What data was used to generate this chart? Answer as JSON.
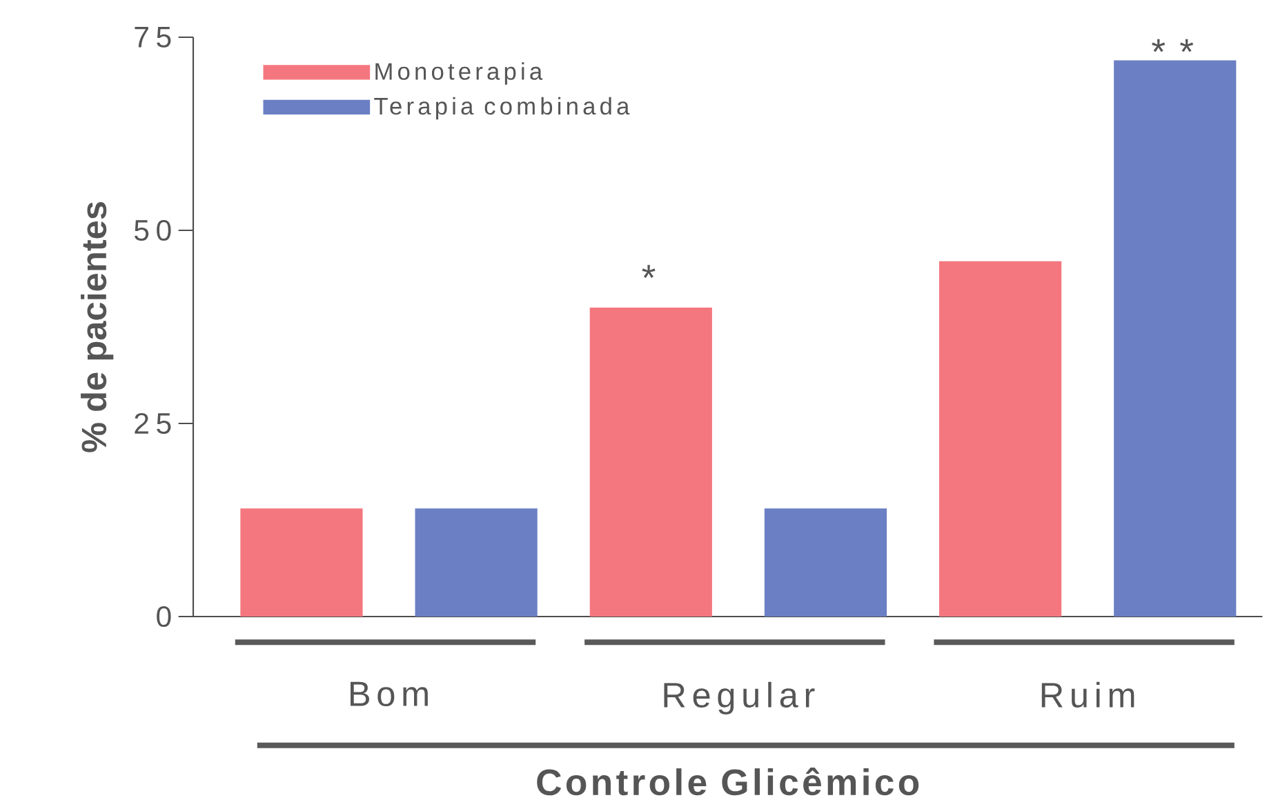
{
  "chart_data": {
    "type": "bar",
    "xlabel": "Controle Glicêmico",
    "ylabel": "% de pacientes",
    "categories": [
      "Bom",
      "Regular",
      "Ruim"
    ],
    "series": [
      {
        "name": "Monoterapia",
        "color": "#f4777f",
        "values": [
          14,
          40,
          46
        ]
      },
      {
        "name": "Terapia combinada",
        "color": "#6b7fc4",
        "values": [
          14,
          14,
          72
        ]
      }
    ],
    "ylim": [
      0,
      75
    ],
    "yticks": [
      0,
      25,
      50,
      75
    ],
    "grid": false,
    "legend": "top left",
    "annotations": [
      "*",
      "* *"
    ]
  }
}
